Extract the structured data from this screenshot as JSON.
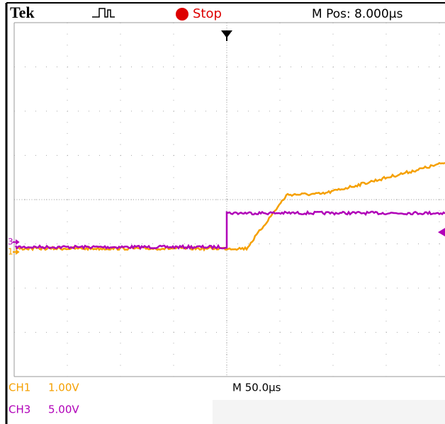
{
  "header": {
    "brand": "Tek",
    "status": "Stop",
    "position": "M Pos: 8.000µs"
  },
  "markers": {
    "ch3": "3",
    "ch1": "1"
  },
  "footer": {
    "ch1": "CH1",
    "ch1_scale": "1.00V",
    "timebase": "M 50.0µs",
    "ch3": "CH3",
    "ch3_scale": "5.00V"
  }
}
